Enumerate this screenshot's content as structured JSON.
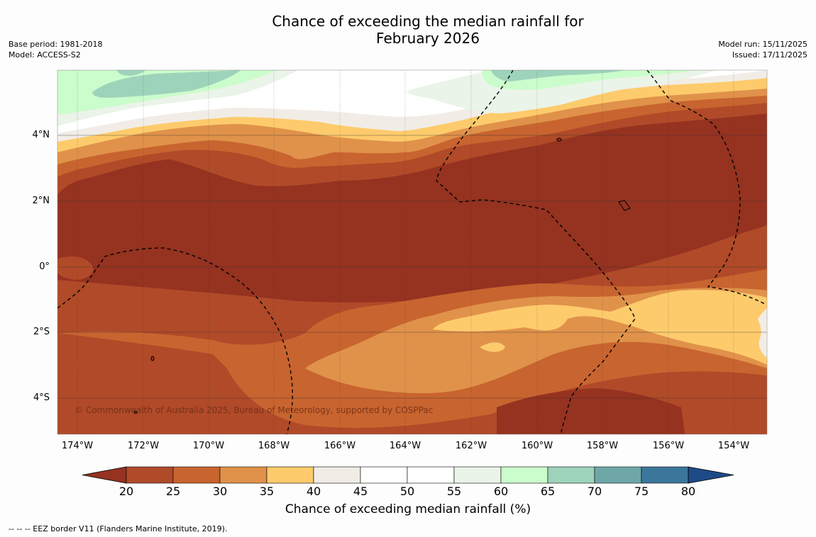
{
  "title_line1": "Chance of exceeding the median rainfall for",
  "title_line2": "February 2026",
  "meta": {
    "base_period": "Base period: 1981-2018",
    "model": "Model: ACCESS-S2",
    "model_run": "Model run: 15/11/2025",
    "issued": "Issued: 17/11/2025"
  },
  "copyright": "© Commonwealth of Australia 2025, Bureau of Meteorology, supported by COSPPac",
  "footnote": "--  --  -- EEZ border V11 (Flanders Marine Institute, 2019).",
  "lat_labels": [
    "4°N",
    "2°N",
    "0°",
    "2°S",
    "4°S"
  ],
  "lon_labels": [
    "174°W",
    "172°W",
    "170°W",
    "168°W",
    "166°W",
    "164°W",
    "162°W",
    "160°W",
    "158°W",
    "156°W",
    "154°W"
  ],
  "colorbar": {
    "title": "Chance of exceeding median rainfall (%)",
    "ticks": [
      "20",
      "25",
      "30",
      "35",
      "40",
      "45",
      "50",
      "55",
      "60",
      "65",
      "70",
      "75",
      "80"
    ],
    "colors": [
      "#953220",
      "#b04a28",
      "#c8642f",
      "#e0924a",
      "#fdcb6c",
      "#f1ede6",
      "#ffffff",
      "#ffffff",
      "#eaf4e8",
      "#cbfccb",
      "#9ed3bb",
      "#6fa7a8",
      "#3c779b",
      "#1d4b87"
    ]
  }
}
